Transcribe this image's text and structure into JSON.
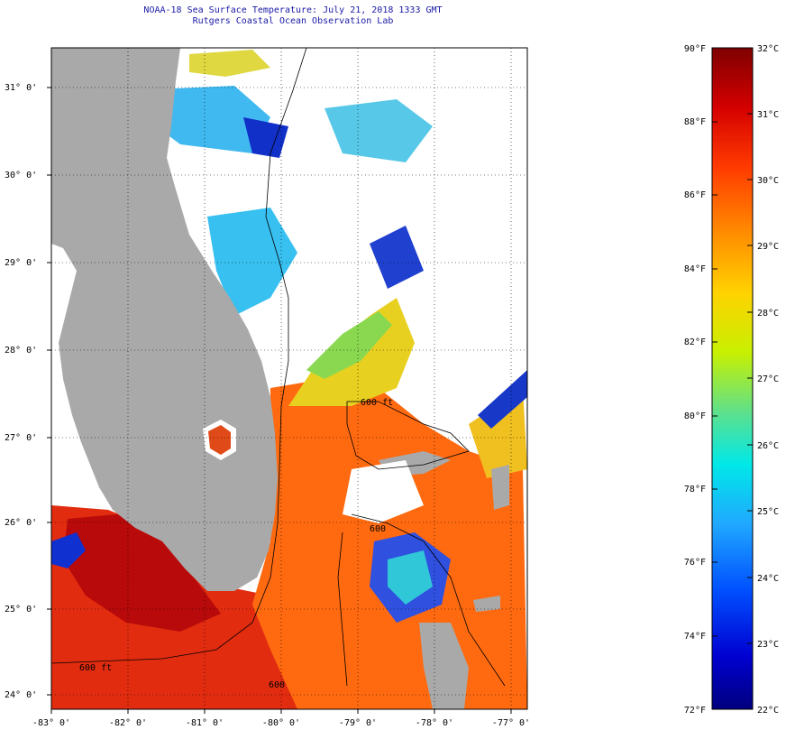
{
  "header": {
    "title": "NOAA-18 Sea Surface Temperature:  July 21, 2018 1333 GMT",
    "subtitle": "Rutgers Coastal Ocean Observation Lab"
  },
  "map": {
    "lat_labels": [
      "31° 0'",
      "30° 0'",
      "29° 0'",
      "28° 0'",
      "27° 0'",
      "26° 0'",
      "25° 0'",
      "24° 0'"
    ],
    "lon_labels": [
      "-83° 0'",
      "-82° 0'",
      "-81° 0'",
      "-80° 0'",
      "-79° 0'",
      "-78° 0'",
      "-77° 0'"
    ],
    "bathymetry_labels": [
      "600 ft",
      "600",
      "600 ft",
      "600"
    ],
    "colors": {
      "land": "#a9a9a9",
      "cloud": "#ffffff",
      "border": "#000000"
    }
  },
  "colorbar": {
    "fahrenheit_labels": [
      "90°F",
      "88°F",
      "86°F",
      "84°F",
      "82°F",
      "80°F",
      "78°F",
      "76°F",
      "74°F",
      "72°F"
    ],
    "celsius_labels": [
      "32°C",
      "31°C",
      "30°C",
      "29°C",
      "28°C",
      "27°C",
      "26°C",
      "25°C",
      "24°C",
      "23°C",
      "22°C"
    ],
    "gradient_stops": [
      "#7f0000",
      "#d40000",
      "#ff3a00",
      "#ff8c00",
      "#ffd200",
      "#c8f000",
      "#5fe08a",
      "#00e8e8",
      "#20a8ff",
      "#0050ff",
      "#0000d0",
      "#00007f"
    ]
  }
}
